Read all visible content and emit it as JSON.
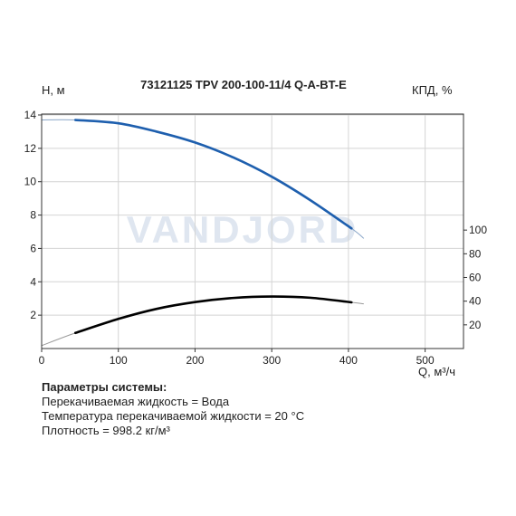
{
  "chart_data": {
    "type": "line",
    "title": "73121125 TPV 200-100-11/4 Q-A-BT-E",
    "xlabel": "Q, м³/ч",
    "ylabel_left": "Н, м",
    "ylabel_right": "КПД, %",
    "x_range": [
      0,
      550
    ],
    "x_ticks": [
      "0",
      "100",
      "200",
      "300",
      "400",
      "500"
    ],
    "y_left_range": [
      0,
      14
    ],
    "y_left_ticks": [
      "2",
      "4",
      "6",
      "8",
      "10",
      "12",
      "14"
    ],
    "y_right_range": [
      0,
      120
    ],
    "y_right_ticks": [
      "20",
      "40",
      "60",
      "80",
      "100"
    ],
    "grid": true,
    "watermark": "VANDJORD",
    "series": [
      {
        "axis": "left",
        "color": "#1e5fae",
        "extension_color": "#8aa6c8",
        "x": [
          0,
          44,
          100,
          150,
          200,
          250,
          300,
          350,
          404,
          420
        ],
        "y": [
          13.7,
          13.7,
          13.5,
          13.0,
          12.35,
          11.45,
          10.3,
          8.9,
          7.2,
          6.6
        ],
        "solid_range": [
          44,
          404
        ]
      },
      {
        "axis": "right",
        "color": "#000000",
        "extension_color": "#999999",
        "x": [
          0,
          44,
          100,
          150,
          200,
          250,
          300,
          350,
          404,
          420
        ],
        "y": [
          2.5,
          13.2,
          25,
          33.5,
          39.2,
          42.7,
          43.9,
          42.9,
          39.0,
          37.7
        ],
        "solid_range": [
          44,
          404
        ]
      }
    ]
  },
  "params": {
    "title": "Параметры системы:",
    "lines": [
      "Перекачиваемая жидкость = Вода",
      "Температура перекачиваемой жидкости = 20 °С",
      "Плотность = 998.2 кг/м³"
    ]
  }
}
